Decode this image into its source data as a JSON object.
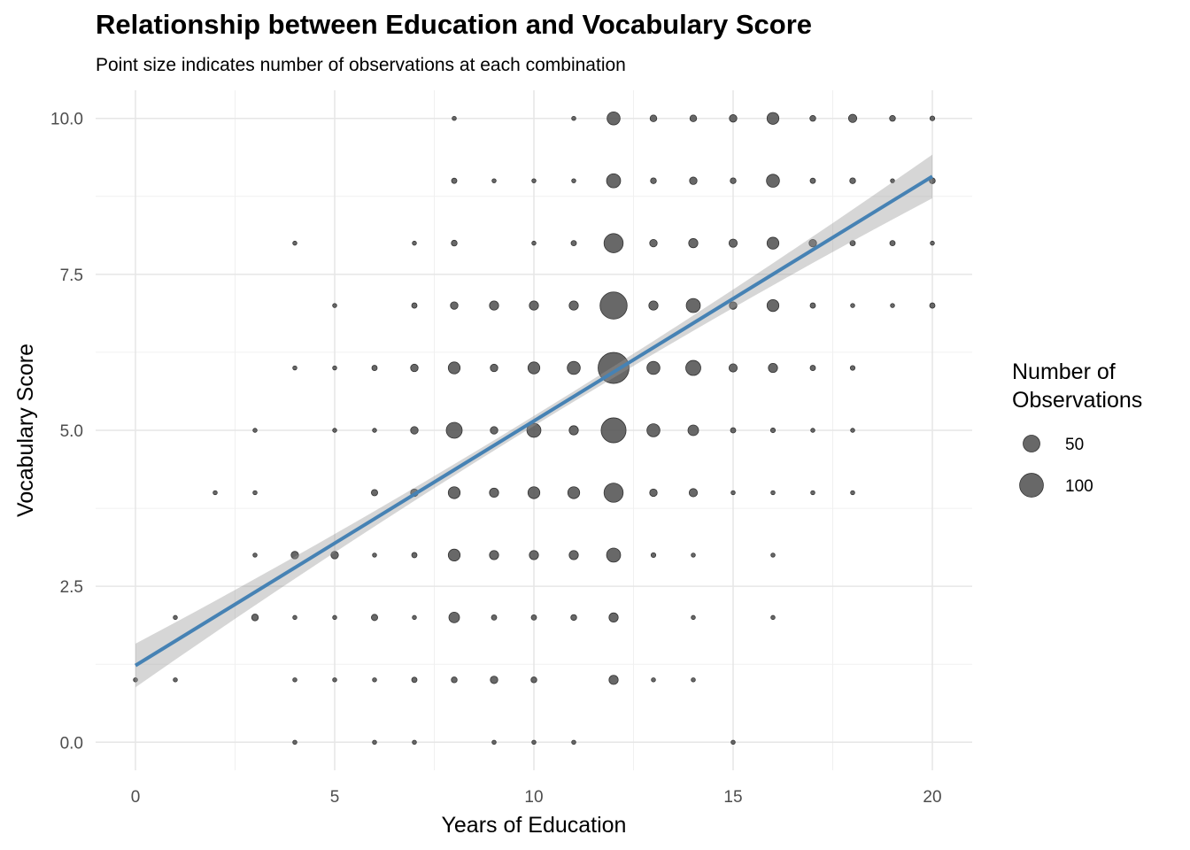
{
  "chart_data": {
    "type": "scatter",
    "title": "Relationship between Education and Vocabulary Score",
    "subtitle": "Point size indicates number of observations at each combination",
    "xlabel": "Years of Education",
    "ylabel": "Vocabulary Score",
    "xlim": [
      -1,
      21
    ],
    "ylim": [
      -0.45,
      10.45
    ],
    "xticks": [
      0,
      5,
      10,
      15,
      20
    ],
    "xtick_labels": [
      "0",
      "5",
      "10",
      "15",
      "20"
    ],
    "yticks": [
      0,
      2.5,
      5,
      7.5,
      10
    ],
    "ytick_labels": [
      "0.0",
      "2.5",
      "5.0",
      "7.5",
      "10.0"
    ],
    "grid": true,
    "legend": {
      "title_lines": [
        "Number of",
        "Observations"
      ],
      "placement": "right",
      "entries": [
        {
          "label": "50",
          "count": 50
        },
        {
          "label": "100",
          "count": 100
        }
      ]
    },
    "point_color": "#4d4d4d",
    "trend": {
      "method": "linear",
      "color": "#4682b4",
      "band_color": "#999999",
      "x": [
        0,
        20
      ],
      "y": [
        1.23,
        9.07
      ],
      "ci_halfwidth_ends": 0.35,
      "ci_halfwidth_center": 0.08
    },
    "points": [
      {
        "x": 0,
        "y": 1,
        "n": 3
      },
      {
        "x": 1,
        "y": 1,
        "n": 3
      },
      {
        "x": 1,
        "y": 2,
        "n": 3
      },
      {
        "x": 2,
        "y": 4,
        "n": 3
      },
      {
        "x": 3,
        "y": 2,
        "n": 8
      },
      {
        "x": 3,
        "y": 3,
        "n": 3
      },
      {
        "x": 3,
        "y": 4,
        "n": 3
      },
      {
        "x": 3,
        "y": 5,
        "n": 3
      },
      {
        "x": 4,
        "y": 0,
        "n": 3
      },
      {
        "x": 4,
        "y": 1,
        "n": 3
      },
      {
        "x": 4,
        "y": 2,
        "n": 3
      },
      {
        "x": 4,
        "y": 3,
        "n": 10
      },
      {
        "x": 4,
        "y": 6,
        "n": 3
      },
      {
        "x": 4,
        "y": 8,
        "n": 3
      },
      {
        "x": 5,
        "y": 1,
        "n": 3
      },
      {
        "x": 5,
        "y": 2,
        "n": 3
      },
      {
        "x": 5,
        "y": 3,
        "n": 10
      },
      {
        "x": 5,
        "y": 5,
        "n": 3
      },
      {
        "x": 5,
        "y": 6,
        "n": 3
      },
      {
        "x": 5,
        "y": 7,
        "n": 3
      },
      {
        "x": 6,
        "y": 0,
        "n": 3
      },
      {
        "x": 6,
        "y": 1,
        "n": 3
      },
      {
        "x": 6,
        "y": 2,
        "n": 7
      },
      {
        "x": 6,
        "y": 3,
        "n": 3
      },
      {
        "x": 6,
        "y": 4,
        "n": 7
      },
      {
        "x": 6,
        "y": 5,
        "n": 3
      },
      {
        "x": 6,
        "y": 6,
        "n": 5
      },
      {
        "x": 7,
        "y": 0,
        "n": 3
      },
      {
        "x": 7,
        "y": 1,
        "n": 5
      },
      {
        "x": 7,
        "y": 2,
        "n": 3
      },
      {
        "x": 7,
        "y": 3,
        "n": 5
      },
      {
        "x": 7,
        "y": 4,
        "n": 10
      },
      {
        "x": 7,
        "y": 5,
        "n": 10
      },
      {
        "x": 7,
        "y": 6,
        "n": 10
      },
      {
        "x": 7,
        "y": 7,
        "n": 5
      },
      {
        "x": 7,
        "y": 8,
        "n": 3
      },
      {
        "x": 8,
        "y": 1,
        "n": 6
      },
      {
        "x": 8,
        "y": 2,
        "n": 20
      },
      {
        "x": 8,
        "y": 3,
        "n": 25
      },
      {
        "x": 8,
        "y": 4,
        "n": 25
      },
      {
        "x": 8,
        "y": 5,
        "n": 45
      },
      {
        "x": 8,
        "y": 6,
        "n": 25
      },
      {
        "x": 8,
        "y": 7,
        "n": 10
      },
      {
        "x": 8,
        "y": 8,
        "n": 6
      },
      {
        "x": 8,
        "y": 9,
        "n": 5
      },
      {
        "x": 8,
        "y": 10,
        "n": 3
      },
      {
        "x": 9,
        "y": 0,
        "n": 3
      },
      {
        "x": 9,
        "y": 1,
        "n": 10
      },
      {
        "x": 9,
        "y": 2,
        "n": 5
      },
      {
        "x": 9,
        "y": 3,
        "n": 15
      },
      {
        "x": 9,
        "y": 4,
        "n": 15
      },
      {
        "x": 9,
        "y": 5,
        "n": 10
      },
      {
        "x": 9,
        "y": 6,
        "n": 10
      },
      {
        "x": 9,
        "y": 7,
        "n": 15
      },
      {
        "x": 9,
        "y": 9,
        "n": 3
      },
      {
        "x": 10,
        "y": 0,
        "n": 3
      },
      {
        "x": 10,
        "y": 1,
        "n": 6
      },
      {
        "x": 10,
        "y": 2,
        "n": 5
      },
      {
        "x": 10,
        "y": 3,
        "n": 15
      },
      {
        "x": 10,
        "y": 4,
        "n": 25
      },
      {
        "x": 10,
        "y": 5,
        "n": 35
      },
      {
        "x": 10,
        "y": 6,
        "n": 25
      },
      {
        "x": 10,
        "y": 7,
        "n": 15
      },
      {
        "x": 10,
        "y": 8,
        "n": 3
      },
      {
        "x": 10,
        "y": 9,
        "n": 3
      },
      {
        "x": 11,
        "y": 0,
        "n": 3
      },
      {
        "x": 11,
        "y": 2,
        "n": 6
      },
      {
        "x": 11,
        "y": 3,
        "n": 15
      },
      {
        "x": 11,
        "y": 4,
        "n": 25
      },
      {
        "x": 11,
        "y": 5,
        "n": 15
      },
      {
        "x": 11,
        "y": 6,
        "n": 30
      },
      {
        "x": 11,
        "y": 7,
        "n": 15
      },
      {
        "x": 11,
        "y": 8,
        "n": 5
      },
      {
        "x": 11,
        "y": 9,
        "n": 3
      },
      {
        "x": 11,
        "y": 10,
        "n": 3
      },
      {
        "x": 12,
        "y": 1,
        "n": 15
      },
      {
        "x": 12,
        "y": 2,
        "n": 15
      },
      {
        "x": 12,
        "y": 3,
        "n": 35
      },
      {
        "x": 12,
        "y": 4,
        "n": 65
      },
      {
        "x": 12,
        "y": 5,
        "n": 110
      },
      {
        "x": 12,
        "y": 6,
        "n": 170
      },
      {
        "x": 12,
        "y": 7,
        "n": 130
      },
      {
        "x": 12,
        "y": 8,
        "n": 65
      },
      {
        "x": 12,
        "y": 9,
        "n": 35
      },
      {
        "x": 12,
        "y": 10,
        "n": 30
      },
      {
        "x": 13,
        "y": 1,
        "n": 3
      },
      {
        "x": 13,
        "y": 3,
        "n": 4
      },
      {
        "x": 13,
        "y": 4,
        "n": 10
      },
      {
        "x": 13,
        "y": 5,
        "n": 30
      },
      {
        "x": 13,
        "y": 6,
        "n": 30
      },
      {
        "x": 13,
        "y": 7,
        "n": 15
      },
      {
        "x": 13,
        "y": 8,
        "n": 10
      },
      {
        "x": 13,
        "y": 9,
        "n": 6
      },
      {
        "x": 13,
        "y": 10,
        "n": 8
      },
      {
        "x": 14,
        "y": 1,
        "n": 3
      },
      {
        "x": 14,
        "y": 2,
        "n": 3
      },
      {
        "x": 14,
        "y": 3,
        "n": 3
      },
      {
        "x": 14,
        "y": 4,
        "n": 12
      },
      {
        "x": 14,
        "y": 5,
        "n": 20
      },
      {
        "x": 14,
        "y": 6,
        "n": 40
      },
      {
        "x": 14,
        "y": 7,
        "n": 35
      },
      {
        "x": 14,
        "y": 8,
        "n": 15
      },
      {
        "x": 14,
        "y": 9,
        "n": 10
      },
      {
        "x": 14,
        "y": 10,
        "n": 8
      },
      {
        "x": 15,
        "y": 0,
        "n": 3
      },
      {
        "x": 15,
        "y": 4,
        "n": 3
      },
      {
        "x": 15,
        "y": 5,
        "n": 5
      },
      {
        "x": 15,
        "y": 6,
        "n": 12
      },
      {
        "x": 15,
        "y": 7,
        "n": 10
      },
      {
        "x": 15,
        "y": 8,
        "n": 12
      },
      {
        "x": 15,
        "y": 9,
        "n": 6
      },
      {
        "x": 15,
        "y": 10,
        "n": 10
      },
      {
        "x": 16,
        "y": 2,
        "n": 3
      },
      {
        "x": 16,
        "y": 3,
        "n": 3
      },
      {
        "x": 16,
        "y": 4,
        "n": 3
      },
      {
        "x": 16,
        "y": 5,
        "n": 4
      },
      {
        "x": 16,
        "y": 6,
        "n": 15
      },
      {
        "x": 16,
        "y": 7,
        "n": 25
      },
      {
        "x": 16,
        "y": 8,
        "n": 25
      },
      {
        "x": 16,
        "y": 9,
        "n": 30
      },
      {
        "x": 16,
        "y": 10,
        "n": 25
      },
      {
        "x": 17,
        "y": 4,
        "n": 3
      },
      {
        "x": 17,
        "y": 5,
        "n": 3
      },
      {
        "x": 17,
        "y": 6,
        "n": 5
      },
      {
        "x": 17,
        "y": 7,
        "n": 5
      },
      {
        "x": 17,
        "y": 8,
        "n": 10
      },
      {
        "x": 17,
        "y": 9,
        "n": 5
      },
      {
        "x": 17,
        "y": 10,
        "n": 6
      },
      {
        "x": 18,
        "y": 4,
        "n": 3
      },
      {
        "x": 18,
        "y": 5,
        "n": 3
      },
      {
        "x": 18,
        "y": 6,
        "n": 4
      },
      {
        "x": 18,
        "y": 7,
        "n": 3
      },
      {
        "x": 18,
        "y": 8,
        "n": 5
      },
      {
        "x": 18,
        "y": 9,
        "n": 6
      },
      {
        "x": 18,
        "y": 10,
        "n": 12
      },
      {
        "x": 19,
        "y": 7,
        "n": 3
      },
      {
        "x": 19,
        "y": 8,
        "n": 5
      },
      {
        "x": 19,
        "y": 9,
        "n": 3
      },
      {
        "x": 19,
        "y": 10,
        "n": 6
      },
      {
        "x": 20,
        "y": 7,
        "n": 5
      },
      {
        "x": 20,
        "y": 8,
        "n": 3
      },
      {
        "x": 20,
        "y": 9,
        "n": 6
      },
      {
        "x": 20,
        "y": 10,
        "n": 4
      }
    ]
  }
}
